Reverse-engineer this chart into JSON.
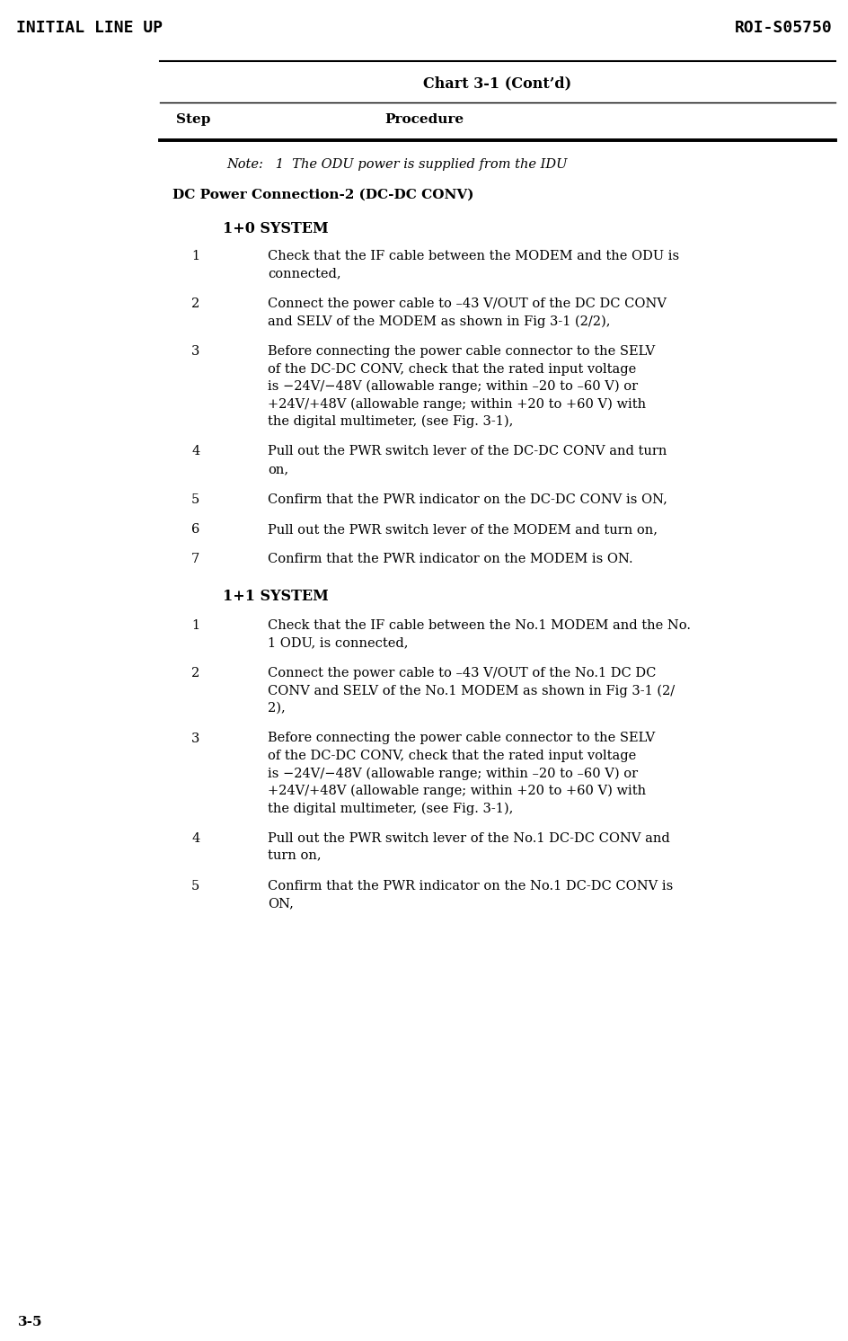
{
  "page_title_left": "INITIAL LINE UP",
  "page_title_right": "ROI-S05750",
  "page_number": "3-5",
  "chart_title": "Chart 3-1 (Cont’d)",
  "col_step": "Step",
  "col_procedure": "Procedure",
  "note_text": "Note:   1  The ODU power is supplied from the IDU",
  "section_heading": "DC Power Connection-2 (DC-DC CONV)",
  "subsection_1": "1+0 SYSTEM",
  "subsection_2": "1+1 SYSTEM",
  "rows_1plus0": [
    {
      "step": "1",
      "lines": [
        "Check that the IF cable between the MODEM and the ODU is",
        "connected,"
      ]
    },
    {
      "step": "2",
      "lines": [
        "Connect the power cable to –43 V/OUT of the DC DC CONV",
        "and SELV of the MODEM as shown in Fig 3-1 (2/2),"
      ]
    },
    {
      "step": "3",
      "lines": [
        "Before connecting the power cable connector to the SELV",
        "of the DC-DC CONV, check that the rated input voltage",
        "is −24V/−48V (allowable range; within –20 to –60 V) or",
        "+24V/+48V (allowable range; within +20 to +60 V) with",
        "the digital multimeter, (see Fig. 3-1),"
      ]
    },
    {
      "step": "4",
      "lines": [
        "Pull out the PWR switch lever of the DC-DC CONV and turn",
        "on,"
      ]
    },
    {
      "step": "5",
      "lines": [
        "Confirm that the PWR indicator on the DC-DC CONV is ON,"
      ]
    },
    {
      "step": "6",
      "lines": [
        "Pull out the PWR switch lever of the MODEM and turn on,"
      ]
    },
    {
      "step": "7",
      "lines": [
        "Confirm that the PWR indicator on the MODEM is ON."
      ]
    }
  ],
  "rows_1plus1": [
    {
      "step": "1",
      "lines": [
        "Check that the IF cable between the No.1 MODEM and the No.",
        "1 ODU, is connected,"
      ]
    },
    {
      "step": "2",
      "lines": [
        "Connect the power cable to –43 V/OUT of the No.1 DC DC",
        "CONV and SELV of the No.1 MODEM as shown in Fig 3-1 (2/",
        "2),"
      ]
    },
    {
      "step": "3",
      "lines": [
        "Before connecting the power cable connector to the SELV",
        "of the DC-DC CONV, check that the rated input voltage",
        "is −24V/−48V (allowable range; within –20 to –60 V) or",
        "+24V/+48V (allowable range; within +20 to +60 V) with",
        "the digital multimeter, (see Fig. 3-1),"
      ]
    },
    {
      "step": "4",
      "lines": [
        "Pull out the PWR switch lever of the No.1 DC-DC CONV and",
        "turn on,"
      ]
    },
    {
      "step": "5",
      "lines": [
        "Confirm that the PWR indicator on the No.1 DC-DC CONV is",
        "ON,"
      ]
    }
  ],
  "bg_color": "#ffffff",
  "text_color": "#000000"
}
